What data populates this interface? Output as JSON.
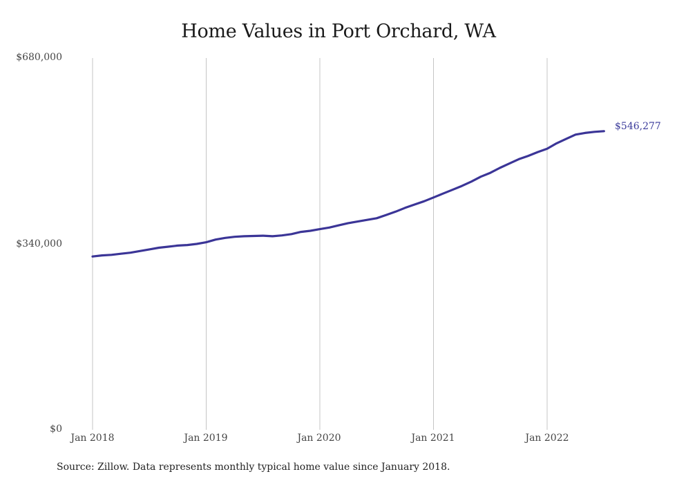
{
  "title": "Home Values in Port Orchard, WA",
  "source": "Source: Zillow. Data represents monthly typical home value since January 2018.",
  "colors": {
    "line": "#3b3597",
    "grid": "#c4c4c4",
    "end_label": "#3a3a9a"
  },
  "y_ticks": [
    "$680,000",
    "$340,000",
    "$0"
  ],
  "x_ticks": [
    "Jan 2018",
    "Jan 2019",
    "Jan 2020",
    "Jan 2021",
    "Jan 2022"
  ],
  "end_label": "$546,277",
  "chart_data": {
    "type": "line",
    "title": "Home Values in Port Orchard, WA",
    "xlabel": "",
    "ylabel": "",
    "ylim": [
      0,
      680000
    ],
    "grid": "vertical lines at each January",
    "legend": "none",
    "annotation": "$546,277 (final value)",
    "x_tick_labels": [
      "Jan 2018",
      "Jan 2019",
      "Jan 2020",
      "Jan 2021",
      "Jan 2022"
    ],
    "y_tick_labels": [
      "$0",
      "$340,000",
      "$680,000"
    ],
    "x": [
      "2018-01",
      "2018-02",
      "2018-03",
      "2018-04",
      "2018-05",
      "2018-06",
      "2018-07",
      "2018-08",
      "2018-09",
      "2018-10",
      "2018-11",
      "2018-12",
      "2019-01",
      "2019-02",
      "2019-03",
      "2019-04",
      "2019-05",
      "2019-06",
      "2019-07",
      "2019-08",
      "2019-09",
      "2019-10",
      "2019-11",
      "2019-12",
      "2020-01",
      "2020-02",
      "2020-03",
      "2020-04",
      "2020-05",
      "2020-06",
      "2020-07",
      "2020-08",
      "2020-09",
      "2020-10",
      "2020-11",
      "2020-12",
      "2021-01",
      "2021-02",
      "2021-03",
      "2021-04",
      "2021-05",
      "2021-06",
      "2021-07",
      "2021-08",
      "2021-09",
      "2021-10",
      "2021-11",
      "2021-12",
      "2022-01",
      "2022-02",
      "2022-03",
      "2022-04",
      "2022-05",
      "2022-06",
      "2022-07"
    ],
    "series": [
      {
        "name": "Typical home value",
        "values": [
          317000,
          319000,
          320000,
          322000,
          324000,
          327000,
          330000,
          333000,
          335000,
          337000,
          338000,
          340000,
          343000,
          348000,
          351000,
          353000,
          354000,
          354500,
          355000,
          354000,
          355500,
          358000,
          362000,
          364000,
          367000,
          370000,
          374000,
          378000,
          381000,
          384000,
          387000,
          393000,
          399000,
          406000,
          412000,
          418000,
          425000,
          432000,
          439000,
          446000,
          454000,
          463000,
          470000,
          479000,
          487000,
          495000,
          501000,
          508000,
          514000,
          524000,
          532000,
          540000,
          543000,
          545000,
          546277
        ]
      }
    ]
  }
}
